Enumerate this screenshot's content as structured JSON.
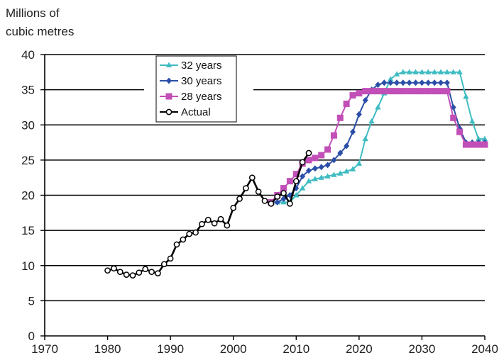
{
  "chart_data": {
    "type": "line",
    "ylabel": [
      "Millions of",
      "cubic metres"
    ],
    "xlim": [
      1970,
      2040
    ],
    "ylim": [
      0,
      40
    ],
    "x_ticks": [
      1970,
      1980,
      1990,
      2000,
      2010,
      2020,
      2030,
      2040
    ],
    "y_ticks": [
      0,
      5,
      10,
      15,
      20,
      25,
      30,
      35,
      40
    ],
    "grid": "horizontal",
    "legend_position": "top-left",
    "series": [
      {
        "name": "32 years",
        "color": "#3fbcc2",
        "marker": "triangle",
        "x": [
          2006,
          2007,
          2008,
          2009,
          2010,
          2011,
          2012,
          2013,
          2014,
          2015,
          2016,
          2017,
          2018,
          2019,
          2020,
          2021,
          2022,
          2023,
          2024,
          2025,
          2026,
          2027,
          2028,
          2029,
          2030,
          2031,
          2032,
          2033,
          2034,
          2035,
          2036,
          2037,
          2038,
          2039,
          2040
        ],
        "y": [
          19,
          19,
          19,
          19,
          20,
          21,
          22,
          22.3,
          22.5,
          22.7,
          22.9,
          23.1,
          23.4,
          23.7,
          24.5,
          28,
          30.5,
          32.5,
          34.5,
          36.5,
          37.2,
          37.5,
          37.5,
          37.5,
          37.5,
          37.5,
          37.5,
          37.5,
          37.5,
          37.5,
          37.5,
          34,
          30.5,
          28,
          28
        ]
      },
      {
        "name": "30 years",
        "color": "#2b4fa8",
        "marker": "diamond",
        "x": [
          2006,
          2007,
          2008,
          2009,
          2010,
          2011,
          2012,
          2013,
          2014,
          2015,
          2016,
          2017,
          2018,
          2019,
          2020,
          2021,
          2022,
          2023,
          2024,
          2025,
          2026,
          2027,
          2028,
          2029,
          2030,
          2031,
          2032,
          2033,
          2034,
          2035,
          2036,
          2037,
          2038,
          2039,
          2040
        ],
        "y": [
          19,
          19,
          19.5,
          20,
          21,
          22.7,
          23.5,
          23.8,
          24,
          24.3,
          25,
          26,
          27,
          29,
          31.5,
          33.5,
          35,
          35.7,
          36,
          36,
          36,
          36,
          36,
          36,
          36,
          36,
          36,
          36,
          36,
          32.5,
          29.5,
          27.5,
          27.5,
          27.5,
          27.5
        ]
      },
      {
        "name": "28 years",
        "color": "#c24fb8",
        "marker": "square",
        "x": [
          2006,
          2007,
          2008,
          2009,
          2010,
          2011,
          2012,
          2013,
          2014,
          2015,
          2016,
          2017,
          2018,
          2019,
          2020,
          2021,
          2022,
          2023,
          2024,
          2025,
          2026,
          2027,
          2028,
          2029,
          2030,
          2031,
          2032,
          2033,
          2034,
          2035,
          2036,
          2037,
          2038,
          2039,
          2040
        ],
        "y": [
          19,
          20,
          21,
          22,
          23,
          24.5,
          25,
          25.3,
          25.7,
          26.5,
          28.5,
          31,
          33,
          34.2,
          34.5,
          34.8,
          34.8,
          34.8,
          34.8,
          34.8,
          34.8,
          34.8,
          34.8,
          34.8,
          34.8,
          34.8,
          34.8,
          34.8,
          34.8,
          31,
          29,
          27.2,
          27.2,
          27.2,
          27.2
        ]
      },
      {
        "name": "Actual",
        "color": "#000000",
        "marker": "circle",
        "x": [
          1980,
          1981,
          1982,
          1983,
          1984,
          1985,
          1986,
          1987,
          1988,
          1989,
          1990,
          1991,
          1992,
          1993,
          1994,
          1995,
          1996,
          1997,
          1998,
          1999,
          2000,
          2001,
          2002,
          2003,
          2004,
          2005,
          2006,
          2007,
          2008,
          2009,
          2010,
          2011,
          2012
        ],
        "y": [
          9.3,
          9.6,
          9.1,
          8.7,
          8.6,
          9.0,
          9.5,
          9.1,
          8.9,
          10.2,
          11.0,
          13.0,
          13.7,
          14.5,
          14.7,
          15.9,
          16.5,
          16.0,
          16.6,
          15.7,
          18.2,
          19.5,
          21.0,
          22.5,
          20.5,
          19.2,
          18.8,
          19.8,
          20.3,
          18.8,
          22.0,
          24.7,
          26.0
        ]
      }
    ]
  }
}
